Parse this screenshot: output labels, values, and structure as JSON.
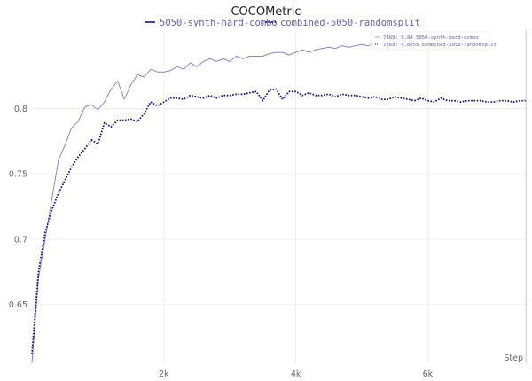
{
  "chart_data": {
    "type": "line",
    "title": "COCOMetric",
    "xlabel": "Step",
    "ylabel": "",
    "xlim": [
      0,
      7500
    ],
    "ylim": [
      0.605,
      0.86
    ],
    "x_ticks": [
      2000,
      4000,
      6000
    ],
    "x_tick_labels": [
      "2k",
      "4k",
      "6k"
    ],
    "y_ticks": [
      0.65,
      0.7,
      0.75,
      0.8
    ],
    "y_tick_labels": [
      "0.65",
      "0.7",
      "0.75",
      "0.8"
    ],
    "grid": true,
    "legend_position": "top",
    "series": [
      {
        "name": "5050-synth-hard-combo",
        "color": "#8e86c8",
        "style": "solid",
        "x": [
          0,
          100,
          200,
          300,
          400,
          500,
          600,
          700,
          800,
          900,
          1000,
          1100,
          1200,
          1300,
          1400,
          1500,
          1600,
          1700,
          1800,
          1900,
          2000,
          2100,
          2200,
          2300,
          2400,
          2500,
          2600,
          2700,
          2800,
          2900,
          3000,
          3100,
          3200,
          3300,
          3400,
          3500,
          3600,
          3700,
          3800,
          3900,
          4000,
          4100,
          4200,
          4300,
          4400,
          4500,
          4600,
          4700,
          4800,
          4900,
          5000,
          5100,
          5200,
          5300,
          5400,
          5500,
          5600
        ],
        "y": [
          0.605,
          0.67,
          0.7,
          0.73,
          0.76,
          0.772,
          0.785,
          0.79,
          0.801,
          0.803,
          0.799,
          0.805,
          0.815,
          0.821,
          0.807,
          0.818,
          0.826,
          0.824,
          0.83,
          0.828,
          0.828,
          0.829,
          0.832,
          0.83,
          0.835,
          0.832,
          0.836,
          0.838,
          0.836,
          0.838,
          0.836,
          0.84,
          0.838,
          0.84,
          0.84,
          0.84,
          0.842,
          0.843,
          0.843,
          0.841,
          0.843,
          0.845,
          0.843,
          0.845,
          0.846,
          0.847,
          0.846,
          0.848,
          0.847,
          0.848,
          0.849,
          0.848,
          0.85,
          0.849,
          0.85,
          0.851,
          0.852
        ]
      },
      {
        "name": "combined-5050-randomsplit",
        "color": "#1a1080",
        "style": "dotted",
        "x": [
          0,
          100,
          200,
          300,
          400,
          500,
          600,
          700,
          800,
          900,
          1000,
          1100,
          1200,
          1300,
          1400,
          1500,
          1600,
          1700,
          1800,
          1900,
          2000,
          2100,
          2200,
          2300,
          2400,
          2500,
          2600,
          2700,
          2800,
          2900,
          3000,
          3100,
          3200,
          3300,
          3400,
          3500,
          3600,
          3700,
          3800,
          3900,
          4000,
          4100,
          4200,
          4300,
          4400,
          4500,
          4600,
          4700,
          4800,
          4900,
          5000,
          5100,
          5200,
          5300,
          5400,
          5500,
          5600,
          5700,
          5800,
          5900,
          6000,
          6100,
          6200,
          6300,
          6400,
          6500,
          6600,
          6700,
          6800,
          6900,
          7000,
          7100,
          7200,
          7300,
          7400,
          7500
        ],
        "y": [
          0.612,
          0.675,
          0.705,
          0.722,
          0.735,
          0.745,
          0.755,
          0.763,
          0.769,
          0.776,
          0.773,
          0.789,
          0.786,
          0.791,
          0.791,
          0.792,
          0.79,
          0.796,
          0.805,
          0.802,
          0.805,
          0.808,
          0.808,
          0.807,
          0.81,
          0.809,
          0.808,
          0.81,
          0.808,
          0.81,
          0.81,
          0.811,
          0.811,
          0.812,
          0.813,
          0.806,
          0.814,
          0.815,
          0.807,
          0.813,
          0.813,
          0.81,
          0.812,
          0.81,
          0.81,
          0.811,
          0.809,
          0.811,
          0.81,
          0.81,
          0.809,
          0.808,
          0.809,
          0.807,
          0.807,
          0.809,
          0.808,
          0.807,
          0.806,
          0.808,
          0.806,
          0.805,
          0.808,
          0.806,
          0.806,
          0.805,
          0.806,
          0.806,
          0.806,
          0.805,
          0.805,
          0.806,
          0.806,
          0.805,
          0.806,
          0.806
        ]
      }
    ],
    "hover": {
      "step": 7489,
      "entries": [
        {
          "label": "7489: 0.84 5050-synth-hard-combo",
          "series": "5050-synth-hard-combo"
        },
        {
          "label": "7868: 0.8055 combined-5050-randomsplit",
          "series": "combined-5050-randomsplit"
        }
      ]
    }
  }
}
